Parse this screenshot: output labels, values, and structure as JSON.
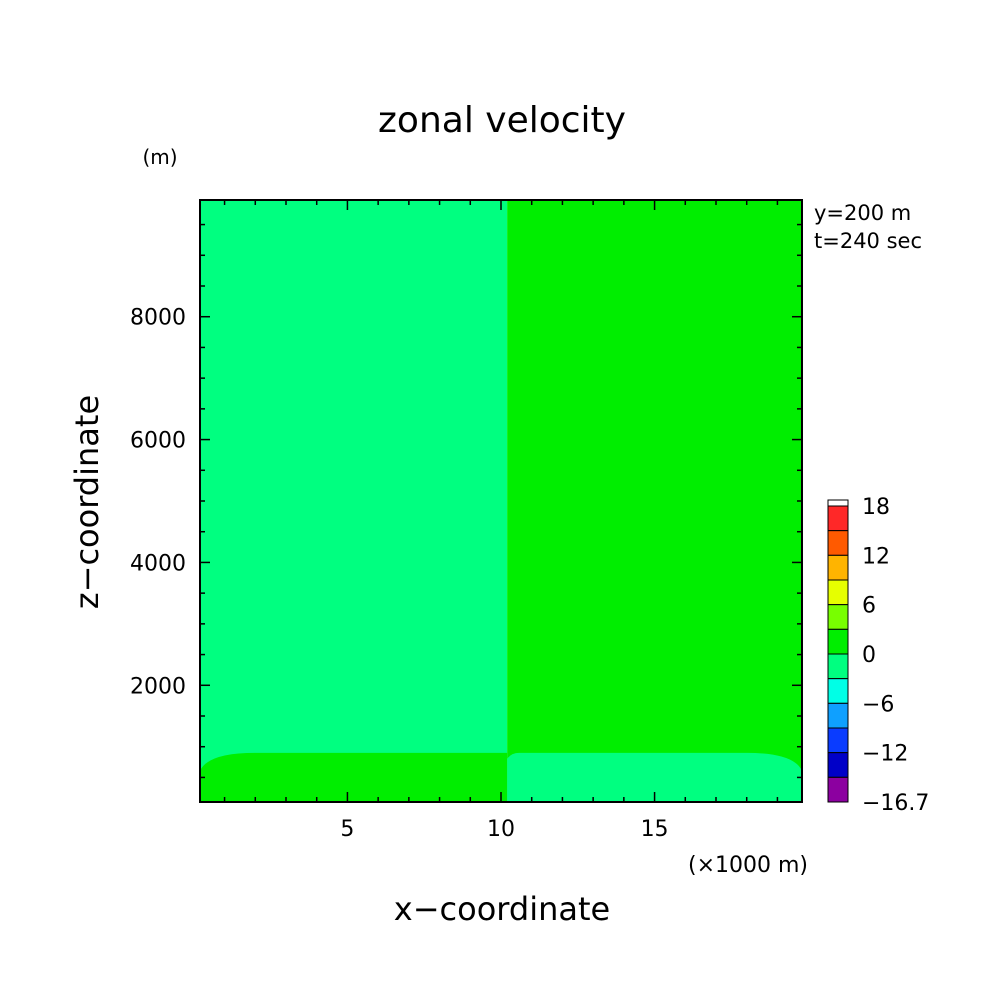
{
  "chart_data": {
    "type": "heatmap",
    "title": "zonal velocity",
    "xlabel": "x−coordinate",
    "ylabel": "z−coordinate",
    "x_unit": "(×1000 m)",
    "y_unit": "(m)",
    "xlim": [
      0.2,
      19.8
    ],
    "ylim": [
      100,
      9900
    ],
    "x_ticks": [
      5,
      10,
      15
    ],
    "y_ticks": [
      2000,
      4000,
      6000,
      8000
    ],
    "annotations": [
      "y=200 m",
      "t=240 sec"
    ],
    "regions": [
      {
        "name": "upper-left",
        "x_range": [
          0.2,
          10.2
        ],
        "z_range": [
          900,
          9900
        ],
        "level": "-3 to 0",
        "color": "#00ff80"
      },
      {
        "name": "upper-right",
        "x_range": [
          10.2,
          19.8
        ],
        "z_range": [
          900,
          9900
        ],
        "level": "0 to 3",
        "color": "#00ee00"
      },
      {
        "name": "lower-left",
        "x_range": [
          0.2,
          10.2
        ],
        "z_range": [
          100,
          900
        ],
        "level": "0 to 3",
        "color": "#00ee00"
      },
      {
        "name": "lower-right",
        "x_range": [
          10.2,
          19.8
        ],
        "z_range": [
          100,
          900
        ],
        "level": "-3 to 0",
        "color": "#00ff80"
      }
    ],
    "colorbar": {
      "tick_labels": [
        "18",
        "12",
        "6",
        "0",
        "−6",
        "−12",
        "−16.7"
      ],
      "colors": [
        "#ff2828",
        "#ff5a00",
        "#ffb400",
        "#e6ff00",
        "#78ff00",
        "#00ee00",
        "#00ff80",
        "#00ffe6",
        "#0fa0ff",
        "#0a3cff",
        "#0000c8",
        "#8c00a0"
      ]
    }
  }
}
